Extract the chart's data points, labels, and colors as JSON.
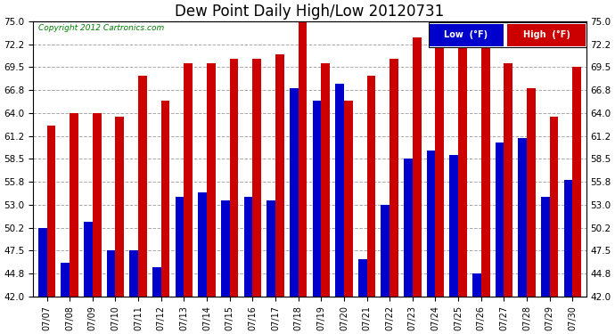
{
  "title": "Dew Point Daily High/Low 20120731",
  "copyright": "Copyright 2012 Cartronics.com",
  "dates": [
    "07/07",
    "07/08",
    "07/09",
    "07/10",
    "07/11",
    "07/12",
    "07/13",
    "07/14",
    "07/15",
    "07/16",
    "07/17",
    "07/18",
    "07/19",
    "07/20",
    "07/21",
    "07/22",
    "07/23",
    "07/24",
    "07/25",
    "07/26",
    "07/27",
    "07/28",
    "07/29",
    "07/30"
  ],
  "low_values": [
    50.2,
    46.0,
    51.0,
    47.5,
    47.5,
    45.5,
    54.0,
    54.5,
    53.5,
    54.0,
    53.5,
    67.0,
    65.5,
    67.5,
    46.5,
    53.0,
    58.5,
    59.5,
    59.0,
    44.8,
    60.5,
    61.0,
    54.0,
    56.0
  ],
  "high_values": [
    62.5,
    64.0,
    64.0,
    63.5,
    68.5,
    65.5,
    70.0,
    70.0,
    70.5,
    70.5,
    71.0,
    75.0,
    70.0,
    65.5,
    68.5,
    70.5,
    73.0,
    73.0,
    75.0,
    73.5,
    70.0,
    67.0,
    63.5,
    69.5
  ],
  "low_color": "#0000cc",
  "high_color": "#cc0000",
  "bg_color": "#ffffff",
  "grid_color": "#aaaaaa",
  "ylim": [
    42.0,
    75.0
  ],
  "yticks": [
    42.0,
    44.8,
    47.5,
    50.2,
    53.0,
    55.8,
    58.5,
    61.2,
    64.0,
    66.8,
    69.5,
    72.2,
    75.0
  ],
  "title_fontsize": 12,
  "legend_low_label": "Low  (°F)",
  "legend_high_label": "High  (°F)",
  "bar_width": 0.38,
  "ybase": 42.0
}
